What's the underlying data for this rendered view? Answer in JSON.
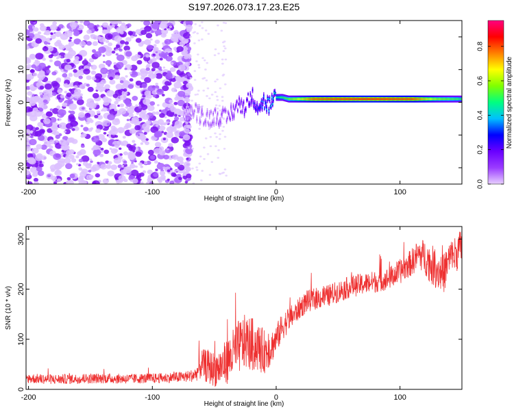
{
  "title": "S197.2026.073.17.23.E25",
  "chart_data": [
    {
      "type": "heatmap",
      "title": "S197.2026.073.17.23.E25",
      "xlabel": "Height of straight line (km)",
      "ylabel": "Frequency (Hz)",
      "xlim": [
        -202,
        150
      ],
      "ylim": [
        -25,
        25
      ],
      "xticks": [
        -200,
        -100,
        0,
        100
      ],
      "yticks": [
        -20,
        -10,
        0,
        10,
        20
      ],
      "colorbar": {
        "label": "Normalized spectral amplitude",
        "range": [
          0,
          0.95
        ],
        "ticks": [
          0.0,
          0.2,
          0.4,
          0.6,
          0.8
        ],
        "colormap": [
          "#e8d0ff",
          "#9a3cff",
          "#6a00ff",
          "#0000ff",
          "#00c0ff",
          "#00ff80",
          "#80ff00",
          "#ffff00",
          "#ff8000",
          "#ff0000",
          "#ff0080"
        ]
      },
      "carrier_track": [
        {
          "x": -75,
          "y": -2
        },
        {
          "x": -65,
          "y": -3
        },
        {
          "x": -55,
          "y": -5
        },
        {
          "x": -48,
          "y": -4
        },
        {
          "x": -40,
          "y": -5
        },
        {
          "x": -32,
          "y": -1
        },
        {
          "x": -25,
          "y": -1
        },
        {
          "x": -20,
          "y": 2
        },
        {
          "x": -15,
          "y": -1
        },
        {
          "x": -10,
          "y": 0
        },
        {
          "x": -5,
          "y": -1
        },
        {
          "x": 0,
          "y": 1.5
        },
        {
          "x": 5,
          "y": 1.5
        },
        {
          "x": 10,
          "y": 1
        },
        {
          "x": 30,
          "y": 1
        },
        {
          "x": 60,
          "y": 1
        },
        {
          "x": 100,
          "y": 1
        },
        {
          "x": 150,
          "y": 1
        }
      ],
      "carrier_amplitude": [
        {
          "x": -75,
          "v": 0.05
        },
        {
          "x": -40,
          "v": 0.1
        },
        {
          "x": -20,
          "v": 0.25
        },
        {
          "x": -5,
          "v": 0.4
        },
        {
          "x": 10,
          "v": 0.55
        },
        {
          "x": 30,
          "v": 0.8
        },
        {
          "x": 70,
          "v": 0.85
        },
        {
          "x": 110,
          "v": 0.82
        },
        {
          "x": 130,
          "v": 0.6
        },
        {
          "x": 150,
          "v": 0.5
        }
      ],
      "noise_region_x": [
        -202,
        -70
      ]
    },
    {
      "type": "line",
      "xlabel": "Height of straight line (km)",
      "ylabel": "SNR (10 * v/v)",
      "xlim": [
        -202,
        150
      ],
      "ylim": [
        0,
        325
      ],
      "xticks": [
        -200,
        -100,
        0,
        100
      ],
      "yticks": [
        0,
        100,
        200,
        300
      ],
      "color": "#ee3030",
      "series": [
        {
          "name": "SNR",
          "x": [
            -202,
            -180,
            -160,
            -140,
            -120,
            -100,
            -90,
            -80,
            -70,
            -65,
            -60,
            -55,
            -50,
            -45,
            -40,
            -35,
            -30,
            -25,
            -20,
            -15,
            -10,
            -5,
            0,
            5,
            10,
            15,
            20,
            25,
            30,
            40,
            50,
            60,
            70,
            80,
            90,
            100,
            105,
            110,
            115,
            120,
            125,
            130,
            135,
            140,
            145,
            150
          ],
          "values": [
            22,
            20,
            21,
            22,
            21,
            22,
            23,
            24,
            26,
            30,
            50,
            45,
            40,
            45,
            55,
            70,
            85,
            95,
            90,
            85,
            75,
            80,
            100,
            125,
            140,
            150,
            165,
            175,
            180,
            185,
            195,
            205,
            210,
            215,
            220,
            235,
            245,
            255,
            270,
            265,
            250,
            240,
            230,
            260,
            270,
            285
          ],
          "spread": [
            10,
            10,
            10,
            10,
            10,
            10,
            10,
            11,
            12,
            14,
            30,
            35,
            35,
            40,
            45,
            50,
            55,
            55,
            55,
            50,
            45,
            35,
            30,
            28,
            25,
            22,
            22,
            22,
            22,
            22,
            22,
            22,
            22,
            22,
            22,
            25,
            25,
            28,
            30,
            35,
            40,
            40,
            40,
            38,
            38,
            38
          ]
        }
      ]
    }
  ]
}
